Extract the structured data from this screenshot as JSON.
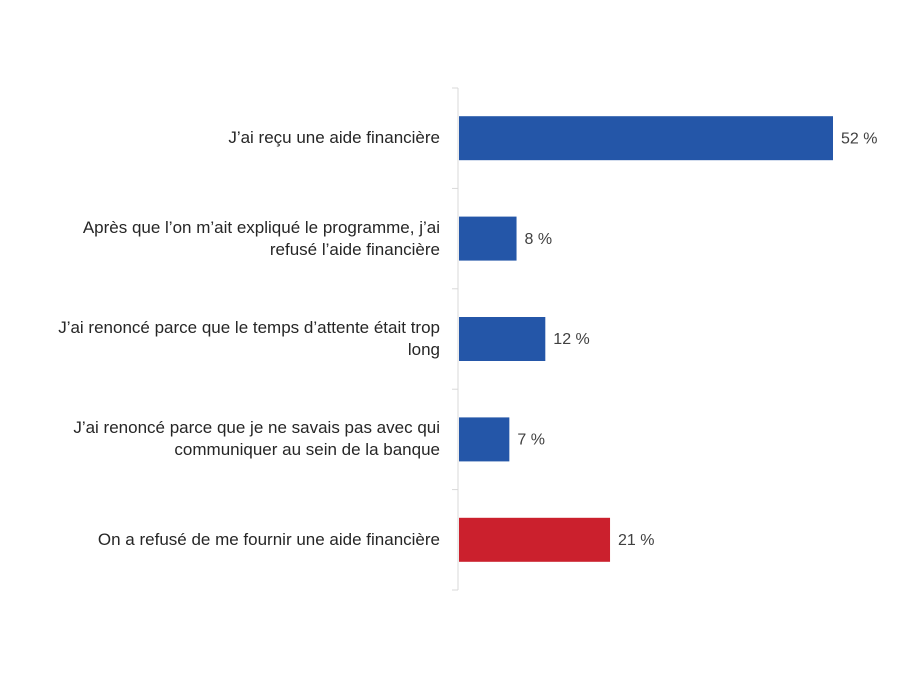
{
  "chart_data": {
    "type": "bar",
    "orientation": "horizontal",
    "categories": [
      "J’ai reçu une aide financière",
      "Après que l’on m’ait expliqué le programme, j’ai refusé l’aide financière",
      "J’ai renoncé parce que le temps d’attente était trop long",
      "J’ai renoncé parce que je ne savais pas avec qui communiquer au sein de la banque",
      "On a refusé de me fournir une aide financière"
    ],
    "values": [
      52,
      8,
      12,
      7,
      21
    ],
    "value_labels": [
      "52 %",
      "8 %",
      "12 %",
      "7 %",
      "21 %"
    ],
    "colors": [
      "#2456a8",
      "#2456a8",
      "#2456a8",
      "#2456a8",
      "#cb202d"
    ]
  }
}
